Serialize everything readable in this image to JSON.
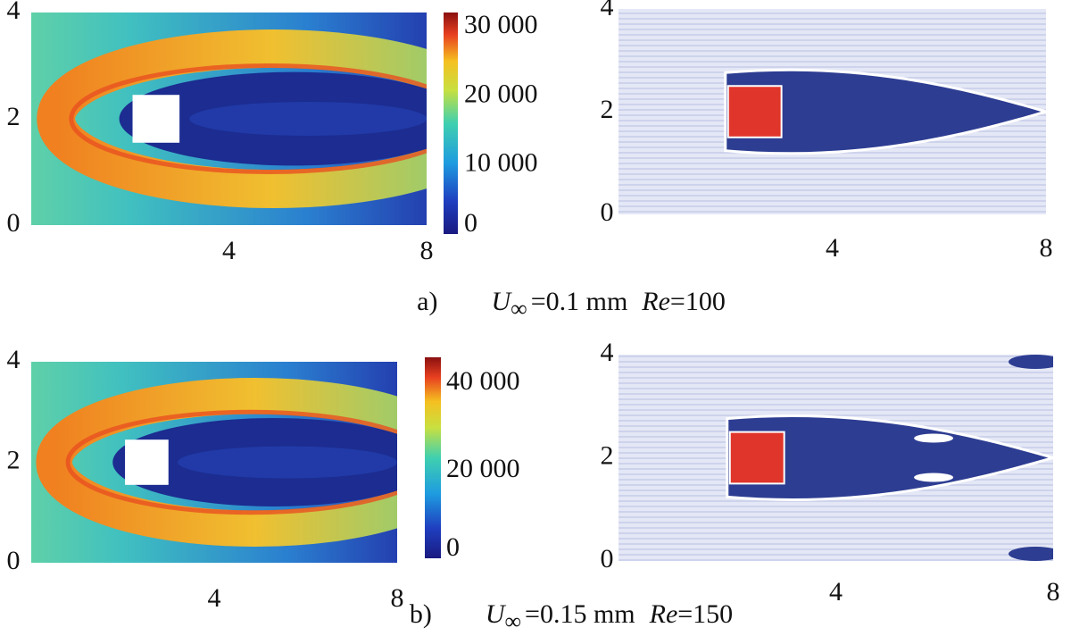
{
  "figure": {
    "panels": [
      {
        "caption": {
          "label": "a)",
          "symbol": "U",
          "subscript": "∞",
          "speed": "=0.1 mm",
          "re_symbol": "Re",
          "re_value": "=100"
        },
        "heatmap": {
          "xticks": [
            4,
            8
          ],
          "yticks": [
            0,
            2,
            4
          ],
          "colorbar_ticks": [
            {
              "value": 0,
              "label": "0"
            },
            {
              "value": 10000,
              "label": "10 000"
            },
            {
              "value": 20000,
              "label": "20 000"
            },
            {
              "value": 30000,
              "label": "30 000"
            }
          ]
        },
        "streamlines": {
          "xticks": [
            4,
            8
          ],
          "yticks": [
            0,
            2,
            4
          ]
        }
      },
      {
        "caption": {
          "label": "b)",
          "symbol": "U",
          "subscript": "∞",
          "speed": "=0.15 mm",
          "re_symbol": "Re",
          "re_value": "=150"
        },
        "heatmap": {
          "xticks": [
            4,
            8
          ],
          "yticks": [
            0,
            2,
            4
          ],
          "colorbar_ticks": [
            {
              "value": 0,
              "label": "0"
            },
            {
              "value": 20000,
              "label": "20 000"
            },
            {
              "value": 40000,
              "label": "40 000"
            }
          ]
        },
        "streamlines": {
          "xticks": [
            4,
            8
          ],
          "yticks": [
            0,
            2,
            4
          ]
        }
      }
    ]
  }
}
